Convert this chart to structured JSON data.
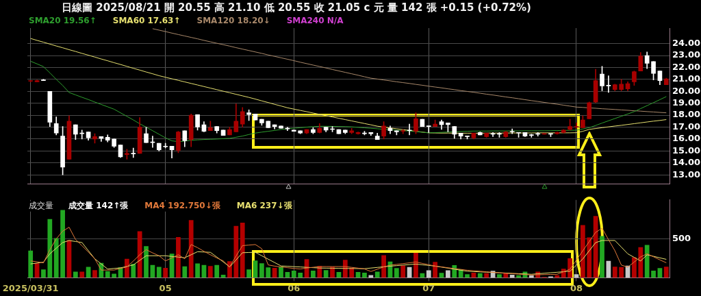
{
  "chart_data": [
    {
      "type": "candlestick",
      "title": "日線圖 2025/08/21 開 20.55 高 21.10 低 20.55 收 21.05 c 元 量 142 張 +0.15 (+0.72%)",
      "categories": [
        "2025/03/31",
        null,
        null,
        null,
        null,
        null,
        null,
        null,
        null,
        null,
        null,
        null,
        null,
        null,
        null,
        null,
        null,
        null,
        null,
        null,
        null,
        "05",
        null,
        null,
        null,
        null,
        null,
        null,
        null,
        null,
        null,
        null,
        null,
        null,
        null,
        null,
        null,
        null,
        null,
        null,
        null,
        "06",
        null,
        null,
        null,
        null,
        null,
        null,
        null,
        null,
        null,
        null,
        null,
        null,
        null,
        null,
        null,
        null,
        null,
        null,
        null,
        null,
        "07",
        null,
        null,
        null,
        null,
        null,
        null,
        null,
        null,
        null,
        null,
        null,
        null,
        null,
        null,
        null,
        null,
        null,
        null,
        null,
        null,
        null,
        null,
        "08",
        null,
        null,
        null,
        null,
        null,
        null,
        null,
        null,
        null,
        null,
        null,
        null,
        null,
        null
      ],
      "ohlc": [
        [
          20.85,
          20.9,
          20.8,
          20.9
        ],
        [
          20.8,
          20.95,
          20.8,
          20.9
        ],
        [
          20.95,
          21.0,
          20.9,
          20.9
        ],
        [
          20.0,
          20.0,
          17.05,
          17.4
        ],
        [
          17.3,
          17.85,
          16.35,
          16.5
        ],
        [
          16.25,
          17.05,
          13.0,
          13.65
        ],
        [
          14.3,
          17.95,
          14.3,
          17.5
        ],
        [
          17.2,
          17.2,
          15.95,
          16.4
        ],
        [
          16.5,
          16.75,
          16.0,
          16.45
        ],
        [
          16.6,
          16.6,
          15.9,
          16.1
        ],
        [
          16.0,
          16.45,
          15.65,
          16.2
        ],
        [
          16.2,
          16.2,
          15.8,
          16.05
        ],
        [
          16.15,
          16.35,
          15.75,
          15.9
        ],
        [
          16.0,
          16.0,
          15.3,
          15.4
        ],
        [
          15.5,
          15.5,
          14.45,
          14.5
        ],
        [
          14.7,
          15.15,
          14.3,
          14.8
        ],
        [
          14.8,
          15.25,
          14.45,
          14.75
        ],
        [
          14.8,
          17.8,
          14.8,
          17.0
        ],
        [
          16.45,
          17.0,
          15.7,
          15.7
        ],
        [
          15.75,
          16.25,
          15.3,
          15.7
        ],
        [
          15.65,
          15.65,
          15.0,
          15.1
        ],
        [
          15.4,
          15.65,
          15.25,
          15.35
        ],
        [
          15.4,
          15.4,
          14.4,
          15.1
        ],
        [
          15.05,
          16.65,
          14.85,
          16.6
        ],
        [
          16.7,
          16.7,
          15.35,
          15.85
        ],
        [
          15.95,
          18.1,
          15.35,
          18.0
        ],
        [
          18.05,
          18.05,
          16.75,
          17.0
        ],
        [
          17.2,
          17.45,
          16.6,
          16.65
        ],
        [
          16.7,
          17.5,
          16.7,
          16.95
        ],
        [
          17.05,
          17.05,
          16.5,
          16.7
        ],
        [
          16.75,
          16.75,
          16.3,
          16.3
        ],
        [
          16.35,
          17.0,
          16.35,
          16.8
        ],
        [
          16.6,
          18.95,
          16.6,
          17.5
        ],
        [
          17.25,
          18.65,
          17.0,
          18.3
        ],
        [
          18.2,
          18.45,
          17.55,
          18.05
        ],
        [
          18.1,
          18.1,
          17.6,
          17.6
        ],
        [
          17.65,
          17.65,
          17.15,
          17.35
        ],
        [
          17.5,
          17.5,
          16.95,
          16.95
        ],
        [
          17.2,
          17.2,
          16.85,
          17.05
        ],
        [
          17.1,
          17.1,
          16.9,
          16.9
        ],
        [
          16.9,
          17.0,
          16.7,
          16.85
        ],
        [
          16.75,
          16.75,
          16.65,
          16.65
        ],
        [
          16.7,
          16.7,
          16.45,
          16.5
        ],
        [
          16.5,
          16.8,
          16.45,
          16.8
        ],
        [
          16.8,
          16.95,
          16.45,
          16.55
        ],
        [
          16.55,
          17.3,
          16.5,
          16.9
        ],
        [
          17.0,
          17.0,
          16.6,
          16.75
        ],
        [
          16.85,
          17.05,
          16.6,
          16.8
        ],
        [
          16.8,
          16.8,
          16.45,
          16.45
        ],
        [
          16.75,
          16.75,
          16.45,
          16.55
        ],
        [
          16.55,
          16.9,
          16.45,
          16.7
        ],
        [
          16.45,
          16.6,
          16.4,
          16.55
        ],
        [
          16.5,
          16.65,
          16.35,
          16.45
        ],
        [
          16.55,
          16.55,
          16.3,
          16.45
        ],
        [
          16.25,
          16.5,
          15.95,
          15.95
        ],
        [
          16.25,
          17.45,
          16.0,
          17.1
        ],
        [
          16.9,
          17.1,
          16.45,
          16.7
        ],
        [
          16.7,
          16.7,
          16.35,
          16.6
        ],
        [
          16.65,
          16.8,
          16.45,
          16.7
        ],
        [
          16.75,
          17.25,
          16.35,
          16.7
        ],
        [
          16.65,
          18.2,
          16.45,
          17.7
        ],
        [
          17.65,
          17.65,
          17.05,
          17.05
        ],
        [
          17.1,
          17.1,
          16.55,
          17.05
        ],
        [
          17.05,
          17.6,
          17.05,
          17.25
        ],
        [
          17.45,
          17.6,
          16.8,
          17.2
        ],
        [
          17.35,
          17.35,
          16.6,
          17.2
        ],
        [
          17.05,
          17.05,
          16.05,
          16.4
        ],
        [
          16.5,
          16.5,
          16.0,
          16.25
        ],
        [
          16.25,
          16.25,
          16.0,
          16.2
        ],
        [
          16.1,
          16.5,
          16.0,
          16.5
        ],
        [
          16.55,
          16.6,
          16.35,
          16.35
        ],
        [
          16.2,
          16.5,
          16.15,
          16.5
        ],
        [
          16.45,
          16.55,
          16.2,
          16.4
        ],
        [
          16.45,
          16.55,
          16.15,
          16.4
        ],
        [
          16.2,
          16.65,
          16.15,
          16.6
        ],
        [
          16.65,
          16.85,
          16.45,
          16.6
        ],
        [
          16.55,
          16.55,
          16.15,
          16.5
        ],
        [
          16.55,
          16.55,
          16.2,
          16.25
        ],
        [
          16.35,
          16.4,
          16.15,
          16.3
        ],
        [
          16.45,
          16.55,
          16.25,
          16.4
        ],
        [
          16.4,
          16.45,
          16.4,
          16.45
        ],
        [
          16.45,
          16.45,
          16.2,
          16.4
        ],
        [
          16.45,
          16.6,
          16.4,
          16.55
        ],
        [
          16.55,
          16.8,
          16.5,
          16.75
        ],
        [
          16.8,
          17.65,
          16.75,
          17.05
        ],
        [
          17.0,
          17.35,
          16.9,
          17.05
        ],
        [
          16.95,
          17.95,
          16.95,
          17.6
        ],
        [
          17.7,
          19.1,
          17.7,
          19.05
        ],
        [
          19.1,
          21.85,
          19.05,
          20.9
        ],
        [
          21.45,
          22.1,
          20.05,
          20.45
        ],
        [
          20.5,
          21.3,
          19.9,
          20.45
        ],
        [
          20.15,
          20.6,
          20.05,
          20.55
        ],
        [
          20.15,
          21.0,
          20.05,
          20.6
        ],
        [
          20.2,
          20.8,
          20.05,
          20.65
        ],
        [
          20.8,
          21.7,
          20.5,
          21.65
        ],
        [
          21.7,
          23.25,
          21.7,
          22.95
        ],
        [
          23.0,
          23.3,
          21.9,
          22.35
        ],
        [
          22.5,
          22.5,
          20.95,
          21.5
        ],
        [
          21.7,
          21.7,
          20.55,
          20.9
        ],
        [
          20.55,
          21.1,
          20.55,
          21.05
        ]
      ],
      "colors": [
        "#a80000",
        "#a80000",
        "#ffffff",
        "#ffffff",
        "#ffffff",
        "#ffffff",
        "#a80000",
        "#ffffff",
        "#ffffff",
        "#ffffff",
        "#a80000",
        "#ffffff",
        "#ffffff",
        "#ffffff",
        "#ffffff",
        "#a80000",
        "#ffffff",
        "#a80000",
        "#ffffff",
        "#ffffff",
        "#ffffff",
        "#ffffff",
        "#ffffff",
        "#a80000",
        "#ffffff",
        "#a80000",
        "#ffffff",
        "#ffffff",
        "#a80000",
        "#ffffff",
        "#ffffff",
        "#a80000",
        "#a80000",
        "#a80000",
        "#ffffff",
        "#ffffff",
        "#ffffff",
        "#ffffff",
        "#ffffff",
        "#ffffff",
        "#ffffff",
        "#ffffff",
        "#ffffff",
        "#a80000",
        "#ffffff",
        "#a80000",
        "#ffffff",
        "#ffffff",
        "#ffffff",
        "#ffffff",
        "#a80000",
        "#a80000",
        "#ffffff",
        "#ffffff",
        "#ffffff",
        "#a80000",
        "#ffffff",
        "#ffffff",
        "#a80000",
        "#ffffff",
        "#a80000",
        "#ffffff",
        "#ffffff",
        "#a80000",
        "#ffffff",
        "#ffffff",
        "#ffffff",
        "#ffffff",
        "#ffffff",
        "#a80000",
        "#ffffff",
        "#a80000",
        "#ffffff",
        "#ffffff",
        "#a80000",
        "#ffffff",
        "#ffffff",
        "#ffffff",
        "#ffffff",
        "#ffffff",
        "#a80000",
        "#ffffff",
        "#a80000",
        "#a80000",
        "#a80000",
        "#a80000",
        "#a80000",
        "#a80000",
        "#a80000",
        "#ffffff",
        "#ffffff",
        "#a80000",
        "#a80000",
        "#a80000",
        "#a80000",
        "#a80000",
        "#ffffff",
        "#ffffff",
        "#ffffff",
        "#a80000"
      ],
      "series": [
        {
          "type": "line",
          "name": "SMA20 19.56↑",
          "color": "#2e9e2e",
          "values": [
            22.52,
            22.3,
            22.07,
            21.55,
            21.0,
            20.49,
            19.9,
            19.7,
            19.5,
            19.31,
            19.1,
            18.9,
            18.7,
            18.5,
            18.2,
            17.9,
            17.6,
            17.28,
            17.0,
            16.7,
            16.4,
            16.1,
            15.85,
            15.78,
            15.82,
            15.9,
            15.93,
            15.96,
            15.98,
            16.0,
            16.03,
            16.06,
            16.15,
            16.25,
            16.38,
            16.5,
            16.58,
            16.65,
            16.72,
            16.8,
            16.87,
            16.91,
            16.95,
            17.0,
            17.04,
            17.07,
            17.07,
            17.06,
            17.05,
            17.04,
            17.02,
            16.98,
            16.94,
            16.9,
            16.86,
            16.82,
            16.78,
            16.74,
            16.7,
            16.67,
            16.62,
            16.57,
            16.52,
            16.54,
            16.56,
            16.59,
            16.61,
            16.63,
            16.65,
            16.67,
            16.67,
            16.67,
            16.68,
            16.68,
            16.68,
            16.68,
            16.68,
            16.69,
            16.69,
            16.69,
            16.69,
            16.7,
            16.71,
            16.72,
            16.73,
            16.74,
            16.84,
            16.95,
            17.14,
            17.34,
            17.53,
            17.72,
            17.91,
            18.1,
            18.3,
            18.55,
            18.8,
            19.05,
            19.3,
            19.56
          ]
        },
        {
          "type": "line",
          "name": "SMA60 17.63↑",
          "color": "#e6e070",
          "values": [
            24.43,
            24.27,
            24.12,
            23.96,
            23.8,
            23.65,
            23.49,
            23.34,
            23.18,
            23.03,
            22.87,
            22.71,
            22.56,
            22.4,
            22.25,
            22.09,
            21.93,
            21.78,
            21.62,
            21.47,
            21.31,
            21.18,
            21.05,
            20.92,
            20.79,
            20.66,
            20.53,
            20.4,
            20.27,
            20.14,
            20.01,
            19.88,
            19.75,
            19.62,
            19.49,
            19.35,
            19.2,
            19.06,
            18.91,
            18.77,
            18.62,
            18.51,
            18.4,
            18.29,
            18.18,
            18.07,
            17.96,
            17.85,
            17.74,
            17.63,
            17.52,
            17.41,
            17.3,
            17.19,
            17.08,
            17.0,
            16.93,
            16.86,
            16.79,
            16.72,
            16.65,
            16.58,
            16.52,
            16.51,
            16.5,
            16.5,
            16.49,
            16.49,
            16.49,
            16.49,
            16.49,
            16.5,
            16.5,
            16.5,
            16.5,
            16.51,
            16.51,
            16.51,
            16.51,
            16.52,
            16.52,
            16.52,
            16.52,
            16.52,
            16.52,
            16.53,
            16.65,
            16.81,
            16.88,
            16.95,
            17.02,
            17.09,
            17.15,
            17.22,
            17.29,
            17.36,
            17.43,
            17.5,
            17.56,
            17.63
          ]
        },
        {
          "type": "line",
          "name": "SMA120 18.20↓",
          "color": "#a8886a",
          "values": [
            null,
            null,
            null,
            null,
            null,
            null,
            null,
            null,
            null,
            null,
            null,
            null,
            null,
            null,
            null,
            null,
            null,
            null,
            null,
            25.25,
            25.13,
            25.01,
            24.88,
            24.76,
            24.64,
            24.52,
            24.4,
            24.27,
            24.15,
            24.03,
            23.91,
            23.79,
            23.66,
            23.54,
            23.42,
            23.3,
            23.18,
            23.05,
            22.93,
            22.81,
            22.69,
            22.57,
            22.44,
            22.32,
            22.2,
            22.08,
            21.96,
            21.83,
            21.71,
            21.59,
            21.47,
            21.35,
            21.22,
            21.1,
            21.03,
            20.95,
            20.88,
            20.8,
            20.73,
            20.66,
            20.58,
            20.51,
            20.43,
            20.36,
            20.29,
            20.21,
            20.14,
            20.06,
            19.99,
            19.92,
            19.84,
            19.76,
            19.69,
            19.61,
            19.53,
            19.46,
            19.38,
            19.3,
            19.22,
            19.15,
            19.07,
            18.99,
            18.92,
            18.84,
            18.76,
            18.68,
            18.65,
            18.61,
            18.58,
            18.54,
            18.51,
            18.48,
            18.44,
            18.41,
            18.37,
            18.34,
            18.3,
            18.27,
            18.23,
            18.2
          ]
        }
      ],
      "annotations": [
        "SMA240 N/A"
      ],
      "ylim": [
        12.25,
        25.3
      ],
      "yticks": [
        {
          "value": 13,
          "label": "13.00"
        },
        {
          "value": 14,
          "label": "14.00"
        },
        {
          "value": 15,
          "label": "15.00"
        },
        {
          "value": 16,
          "label": "16.00"
        },
        {
          "value": 17,
          "label": "17.00"
        },
        {
          "value": 18,
          "label": "18.00"
        },
        {
          "value": 19,
          "label": "19.00"
        },
        {
          "value": 20,
          "label": "20.00"
        },
        {
          "value": 21,
          "label": "21.00"
        },
        {
          "value": 22,
          "label": "22.00"
        },
        {
          "value": 23,
          "label": "23.00"
        },
        {
          "value": 24,
          "label": "24.00"
        }
      ],
      "grid": true,
      "legend": "top left",
      "tick_labels": "y"
    },
    {
      "type": "bar",
      "ylabel": "成交量",
      "categories": [
        "2025/03/31",
        null,
        null,
        null,
        null,
        null,
        null,
        null,
        null,
        null,
        null,
        null,
        null,
        null,
        null,
        null,
        null,
        null,
        null,
        null,
        null,
        "05",
        null,
        null,
        null,
        null,
        null,
        null,
        null,
        null,
        null,
        null,
        null,
        null,
        null,
        null,
        null,
        null,
        null,
        null,
        null,
        "06",
        null,
        null,
        null,
        null,
        null,
        null,
        null,
        null,
        null,
        null,
        null,
        null,
        null,
        null,
        null,
        null,
        null,
        null,
        null,
        null,
        "07",
        null,
        null,
        null,
        null,
        null,
        null,
        null,
        null,
        null,
        null,
        null,
        null,
        null,
        null,
        null,
        null,
        null,
        null,
        null,
        null,
        null,
        null,
        "08",
        null,
        null,
        null,
        null,
        null,
        null,
        null,
        null,
        null,
        null,
        null,
        null,
        null,
        null
      ],
      "series": [
        {
          "name": "成交量 142↑張",
          "values": [
            348,
            186,
            107,
            754,
            510,
            871,
            484,
            79,
            79,
            139,
            99,
            191,
            86,
            52,
            133,
            243,
            178,
            597,
            406,
            165,
            139,
            126,
            309,
            523,
            147,
            741,
            183,
            165,
            152,
            165,
            39,
            212,
            667,
            707,
            107,
            222,
            186,
            133,
            126,
            144,
            73,
            92,
            65,
            238,
            92,
            152,
            99,
            139,
            73,
            230,
            126,
            73,
            65,
            35,
            79,
            289,
            208,
            124,
            158,
            137,
            321,
            58,
            97,
            203,
            63,
            97,
            163,
            110,
            45,
            66,
            58,
            58,
            89,
            45,
            58,
            39,
            32,
            79,
            32,
            79,
            11,
            16,
            32,
            116,
            250,
            45,
            676,
            518,
            794,
            537,
            216,
            142,
            137,
            155,
            263,
            392,
            421,
            92,
            124,
            142
          ],
          "colors": [
            "#22a822",
            "#b40000",
            "#22a822",
            "#22a822",
            "#22a822",
            "#22a822",
            "#b40000",
            "#22a822",
            "#b40000",
            "#22a822",
            "#b40000",
            "#22a822",
            "#22a822",
            "#22a822",
            "#22a822",
            "#b40000",
            "#22a822",
            "#b40000",
            "#22a822",
            "#22a822",
            "#22a822",
            "#b40000",
            "#22a822",
            "#b40000",
            "#22a822",
            "#b40000",
            "#22a822",
            "#22a822",
            "#b40000",
            "#22a822",
            "#22a822",
            "#b40000",
            "#b40000",
            "#b40000",
            "#22a822",
            "#22a822",
            "#22a822",
            "#22a822",
            "#b40000",
            "#22a822",
            "#22a822",
            "#22a822",
            "#22a822",
            "#b40000",
            "#22a822",
            "#b40000",
            "#22a822",
            "#b40000",
            "#22a822",
            "#b40000",
            "#b40000",
            "#22a822",
            "#22a822",
            "#c8c8c8",
            "#22a822",
            "#b40000",
            "#22a822",
            "#22a822",
            "#b40000",
            "#c8c8c8",
            "#b40000",
            "#22a822",
            "#c8c8c8",
            "#b40000",
            "#22a822",
            "#c8c8c8",
            "#22a822",
            "#22a822",
            "#22a822",
            "#b40000",
            "#22a822",
            "#b40000",
            "#c8c8c8",
            "#22a822",
            "#b40000",
            "#c8c8c8",
            "#22a822",
            "#22a822",
            "#c8c8c8",
            "#b40000",
            "#b40000",
            "#c8c8c8",
            "#b40000",
            "#b40000",
            "#b40000",
            "#c8c8c8",
            "#b40000",
            "#b40000",
            "#b40000",
            "#22a822",
            "#c8c8c8",
            "#b40000",
            "#b40000",
            "#c8c8c8",
            "#b40000",
            "#b40000",
            "#22a822",
            "#22a822",
            "#22a822",
            "#b40000"
          ]
        },
        {
          "type": "line",
          "name": "MA4 192.750↓張",
          "color": "#e0783a",
          "values": [
            217,
            205,
            191,
            361,
            500,
            600,
            649,
            492,
            413,
            330,
            243,
            99,
            99,
            99,
            120,
            139,
            215,
            296,
            361,
            320,
            283,
            217,
            255,
            296,
            243,
            427,
            387,
            340,
            296,
            255,
            217,
            139,
            280,
            413,
            420,
            427,
            374,
            165,
            150,
            139,
            130,
            120,
            113,
            125,
            135,
            144,
            144,
            144,
            144,
            144,
            134,
            124,
            113,
            81,
            110,
            140,
            162,
            172,
            182,
            192,
            203,
            185,
            168,
            150,
            140,
            129,
            118,
            108,
            97,
            90,
            84,
            77,
            70,
            63,
            58,
            53,
            47,
            42,
            37,
            39,
            41,
            43,
            45,
            77,
            110,
            228,
            347,
            465,
            584,
            636,
            490,
            347,
            163,
            137,
            202,
            268,
            308,
            270,
            230,
            192.75
          ]
        },
        {
          "type": "line",
          "name": "MA6 237↓張",
          "color": "#e8e070",
          "values": [
            178,
            189,
            200,
            309,
            380,
            453,
            479,
            466,
            453,
            348,
            243,
            178,
            112,
            120,
            127,
            146,
            165,
            224,
            283,
            283,
            283,
            283,
            274,
            266,
            257,
            296,
            335,
            331,
            327,
            266,
            204,
            139,
            230,
            322,
            325,
            327,
            283,
            239,
            196,
            152,
            148,
            143,
            139,
            134,
            130,
            125,
            124,
            123,
            121,
            120,
            119,
            118,
            117,
            125,
            133,
            141,
            149,
            156,
            163,
            169,
            176,
            167,
            159,
            150,
            137,
            124,
            110,
            97,
            84,
            80,
            76,
            72,
            68,
            65,
            61,
            57,
            53,
            49,
            45,
            52,
            58,
            65,
            71,
            78,
            84,
            163,
            242,
            347,
            452,
            479,
            479,
            479,
            394,
            308,
            262,
            216,
            295,
            276,
            256,
            237
          ]
        }
      ],
      "ylim": [
        0,
        1000
      ],
      "yticks": [
        {
          "value": 0,
          "label": null
        },
        500
      ],
      "ref_lines": [
        {
          "axis": "y",
          "value": 500,
          "color": "#4a4a4a"
        }
      ],
      "grid": "x",
      "legend": "top left"
    }
  ]
}
